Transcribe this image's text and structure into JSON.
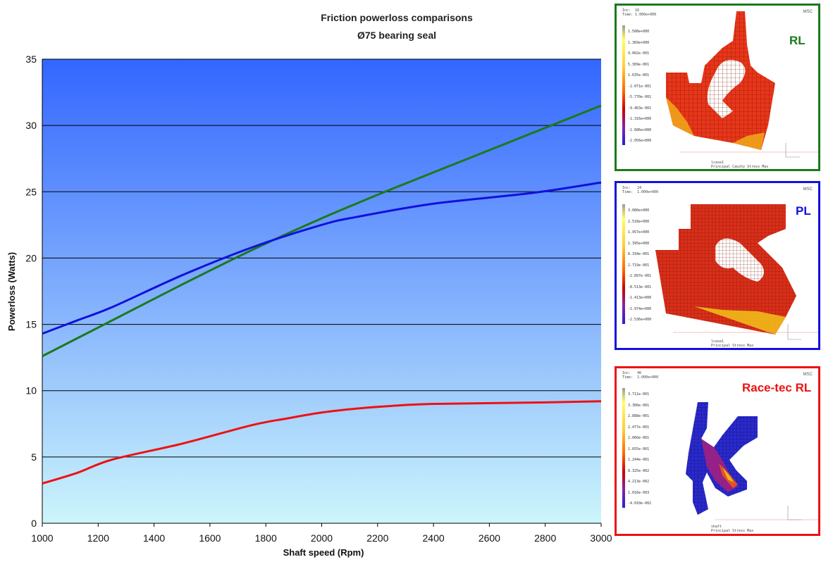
{
  "chart_data": {
    "type": "line",
    "title": [
      "Friction powerloss comparisons",
      "Ø75 bearing seal"
    ],
    "xlabel": "Shaft speed (Rpm)",
    "ylabel": "Powerloss (Watts)",
    "xlim": [
      1000,
      3000
    ],
    "ylim": [
      0,
      35
    ],
    "xticks": [
      1000,
      1200,
      1400,
      1600,
      1800,
      2000,
      2200,
      2400,
      2600,
      2800,
      3000
    ],
    "yticks": [
      0,
      5,
      10,
      15,
      20,
      25,
      30,
      35
    ],
    "grid": "horizontal",
    "background_gradient": [
      "#3366ff",
      "#ccf5fb"
    ],
    "series": [
      {
        "color": "#1a7a1a",
        "x": [
          1000,
          1250,
          1500,
          1750,
          2000,
          2250,
          2500,
          2750,
          3000
        ],
        "y": [
          12.6,
          15.3,
          18.0,
          20.6,
          23.0,
          25.2,
          27.3,
          29.4,
          31.5
        ]
      },
      {
        "color": "#1111dd",
        "x": [
          1000,
          1125,
          1250,
          1500,
          1750,
          2000,
          2125,
          2400,
          2750,
          3000
        ],
        "y": [
          14.3,
          15.3,
          16.3,
          18.7,
          20.8,
          22.5,
          23.1,
          24.1,
          24.9,
          25.7
        ]
      },
      {
        "color": "#ee1111",
        "x": [
          1000,
          1125,
          1250,
          1500,
          1750,
          1875,
          2000,
          2125,
          2250,
          2400,
          2750,
          3000
        ],
        "y": [
          3.0,
          3.8,
          4.8,
          6.0,
          7.4,
          7.9,
          8.35,
          8.65,
          8.85,
          9.0,
          9.1,
          9.2
        ]
      }
    ]
  },
  "panels": [
    {
      "label": "RL",
      "color": "#1a7a1a",
      "meta": "Inc:  16\nTime: 1.000e+000",
      "bottom": "lcase1\nPrincipal Cauchy Stress Max",
      "logo": "MSC",
      "legend": [
        "1.508e+000",
        "1.369e+000",
        "9.002e-001",
        "5.309e-001",
        "1.635e-001",
        "-2.071e-001",
        "-5.770e-001",
        "-9.463e-001",
        "-1.316e+000",
        "-1.686e+000",
        "-2.056e+000"
      ]
    },
    {
      "label": "PL",
      "color": "#1111dd",
      "meta": "Inc:   24\nTime:  1.000e+000",
      "bottom": "lcase1\nPrincipal Stress Max",
      "logo": "MSC",
      "legend": [
        "3.080e+000",
        "2.518e+000",
        "1.957e+000",
        "1.395e+000",
        "8.334e-001",
        "2.719e-001",
        "-2.897e-001",
        "-8.513e-001",
        "-1.413e+000",
        "-1.974e+000",
        "-2.536e+000"
      ]
    },
    {
      "label": "Race-tec RL",
      "color": "#ee1111",
      "meta": "Inc:   46\nTime:  2.000e+000",
      "bottom": "shaft\nPrincipal Stress Max",
      "logo": "MSC",
      "legend": [
        "3.711e-001",
        "3.300e-001",
        "2.888e-001",
        "2.477e-001",
        "2.066e-001",
        "1.655e-001",
        "1.244e-001",
        "8.325e-002",
        "4.213e-002",
        "1.016e-003",
        "-4.010e-002"
      ]
    }
  ]
}
